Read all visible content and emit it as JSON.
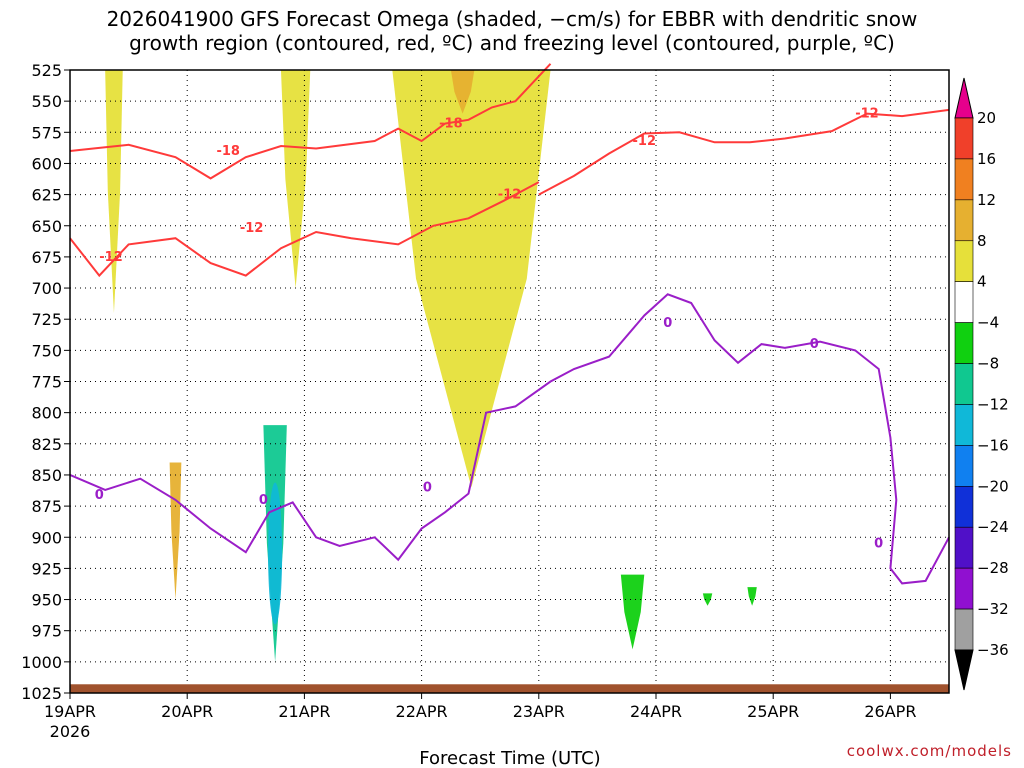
{
  "title_line1": "2026041900 GFS Forecast Omega (shaded, −cm/s) for EBBR with dendritic snow",
  "title_line2": "growth region (contoured, red, ºC) and freezing level (contoured, purple, ºC)",
  "credit": "coolwx.com/models",
  "chart_data": {
    "type": "heatmap",
    "title": "2026041900 GFS Forecast Omega (shaded, −cm/s) for EBBR with dendritic snow growth region (contoured, red, ºC) and freezing level (contoured, purple, ºC)",
    "xlabel": "Forecast Time (UTC)",
    "ylabel": "",
    "x_ticks": [
      "19APR",
      "20APR",
      "21APR",
      "22APR",
      "23APR",
      "24APR",
      "25APR",
      "26APR"
    ],
    "x_year_label": "2026",
    "x_range_days": [
      0,
      7.5
    ],
    "y_ticks": [
      "525",
      "550",
      "575",
      "600",
      "625",
      "650",
      "675",
      "700",
      "725",
      "750",
      "775",
      "800",
      "825",
      "850",
      "875",
      "900",
      "925",
      "950",
      "975",
      "1000",
      "1025"
    ],
    "y_range_hpa": [
      525,
      1025
    ],
    "grid": true,
    "colorbar": {
      "levels": [
        "20",
        "16",
        "12",
        "8",
        "4",
        "−4",
        "−8",
        "−12",
        "−16",
        "−20",
        "−24",
        "−28",
        "−32",
        "−36"
      ],
      "colors": [
        "#e6008c",
        "#f0402a",
        "#f08020",
        "#e6b030",
        "#e6e03a",
        "#ffffff",
        "#10d010",
        "#10c890",
        "#10b8d8",
        "#1080f0",
        "#1030d8",
        "#5010c8",
        "#9010d0",
        "#a0a0a0",
        "#000000"
      ]
    },
    "contours": {
      "dgz_red": {
        "color": "#ff3a3a",
        "labels": [
          "-12",
          "-18",
          "-12",
          "-18",
          "-12",
          "-12",
          "-12"
        ],
        "upper_minus18": [
          [
            0,
            590
          ],
          [
            0.2,
            588
          ],
          [
            0.5,
            585
          ],
          [
            0.9,
            595
          ],
          [
            1.2,
            612
          ],
          [
            1.5,
            595
          ],
          [
            1.8,
            586
          ],
          [
            2.1,
            588
          ],
          [
            2.6,
            582
          ],
          [
            2.8,
            572
          ],
          [
            3.0,
            582
          ],
          [
            3.2,
            568
          ],
          [
            3.4,
            565
          ],
          [
            3.6,
            555
          ],
          [
            3.8,
            550
          ],
          [
            4.1,
            520
          ]
        ],
        "upper_minus12": [
          [
            4.0,
            625
          ],
          [
            4.3,
            610
          ],
          [
            4.6,
            592
          ],
          [
            4.9,
            576
          ],
          [
            5.2,
            575
          ],
          [
            5.5,
            583
          ],
          [
            5.8,
            583
          ],
          [
            6.1,
            580
          ],
          [
            6.5,
            574
          ],
          [
            6.8,
            560
          ],
          [
            7.1,
            562
          ],
          [
            7.5,
            557
          ]
        ],
        "lower_minus12": [
          [
            0,
            660
          ],
          [
            0.25,
            690
          ],
          [
            0.5,
            665
          ],
          [
            0.9,
            660
          ],
          [
            1.2,
            680
          ],
          [
            1.5,
            690
          ],
          [
            1.8,
            668
          ],
          [
            2.1,
            655
          ],
          [
            2.4,
            660
          ],
          [
            2.8,
            665
          ],
          [
            3.1,
            650
          ],
          [
            3.4,
            644
          ],
          [
            3.7,
            630
          ],
          [
            4.0,
            615
          ]
        ]
      },
      "freezing_purple": {
        "color": "#9a1ec8",
        "labels": [
          "0",
          "0",
          "0",
          "0",
          "0",
          "0"
        ],
        "points": [
          [
            0,
            850
          ],
          [
            0.3,
            862
          ],
          [
            0.6,
            853
          ],
          [
            0.9,
            870
          ],
          [
            1.2,
            893
          ],
          [
            1.5,
            912
          ],
          [
            1.7,
            880
          ],
          [
            1.9,
            872
          ],
          [
            2.1,
            900
          ],
          [
            2.3,
            907
          ],
          [
            2.6,
            900
          ],
          [
            2.8,
            918
          ],
          [
            3.0,
            893
          ],
          [
            3.2,
            880
          ],
          [
            3.4,
            865
          ],
          [
            3.55,
            800
          ],
          [
            3.8,
            795
          ],
          [
            4.1,
            775
          ],
          [
            4.3,
            765
          ],
          [
            4.6,
            755
          ],
          [
            4.9,
            722
          ],
          [
            5.1,
            705
          ],
          [
            5.3,
            712
          ],
          [
            5.5,
            742
          ],
          [
            5.7,
            760
          ],
          [
            5.9,
            745
          ],
          [
            6.1,
            748
          ],
          [
            6.4,
            743
          ],
          [
            6.7,
            750
          ],
          [
            6.9,
            765
          ],
          [
            7.0,
            820
          ],
          [
            7.05,
            870
          ],
          [
            7.0,
            925
          ],
          [
            7.1,
            937
          ],
          [
            7.3,
            935
          ],
          [
            7.5,
            900
          ]
        ]
      }
    },
    "shaded_regions": [
      {
        "band": "4 to 8",
        "x_days": [
          0.3,
          0.45
        ],
        "p_hpa": [
          525,
          720
        ]
      },
      {
        "band": "4 to 8",
        "x_days": [
          1.8,
          2.05
        ],
        "p_hpa": [
          525,
          700
        ]
      },
      {
        "band": "4 to 8",
        "x_days": [
          2.75,
          4.1
        ],
        "p_hpa": [
          525,
          860
        ]
      },
      {
        "band": "8 to 12",
        "x_days": [
          3.25,
          3.45
        ],
        "p_hpa": [
          525,
          560
        ]
      },
      {
        "band": "8 to 12",
        "x_days": [
          0.85,
          0.95
        ],
        "p_hpa": [
          840,
          950
        ]
      },
      {
        "band": "-4 to -16",
        "x_days": [
          1.65,
          1.85
        ],
        "p_hpa": [
          810,
          1000
        ]
      },
      {
        "band": "-4 to -8",
        "x_days": [
          4.7,
          4.9
        ],
        "p_hpa": [
          930,
          990
        ]
      },
      {
        "band": "-4 to -8",
        "x_days": [
          5.4,
          5.48
        ],
        "p_hpa": [
          945,
          955
        ]
      },
      {
        "band": "-4 to -8",
        "x_days": [
          5.78,
          5.86
        ],
        "p_hpa": [
          940,
          955
        ]
      }
    ],
    "terrain_color": "#a0522d"
  }
}
